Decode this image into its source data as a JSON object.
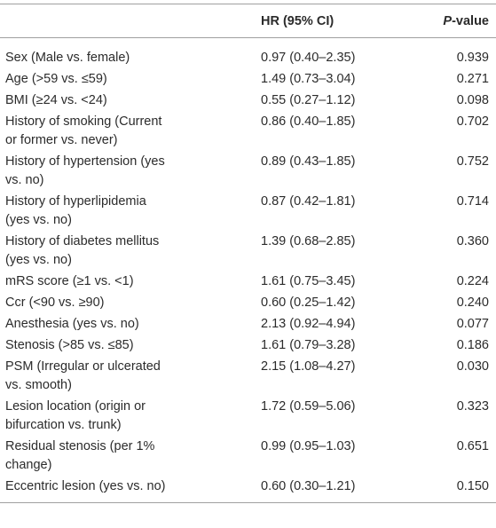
{
  "table": {
    "header": {
      "hr": "HR (95% CI)",
      "p_italic": "P",
      "p_rest": "-value"
    },
    "rows": [
      {
        "label": [
          "Sex (Male vs. female)"
        ],
        "hr": "0.97 (0.40–2.35)",
        "p": "0.939"
      },
      {
        "label": [
          "Age (>59 vs. ≤59)"
        ],
        "hr": "1.49 (0.73–3.04)",
        "p": "0.271"
      },
      {
        "label": [
          "BMI (≥24 vs. <24)"
        ],
        "hr": "0.55 (0.27–1.12)",
        "p": "0.098"
      },
      {
        "label": [
          "History of smoking (Current",
          "or former vs. never)"
        ],
        "hr": "0.86 (0.40–1.85)",
        "p": "0.702"
      },
      {
        "label": [
          "History of hypertension (yes",
          "vs. no)"
        ],
        "hr": "0.89 (0.43–1.85)",
        "p": "0.752"
      },
      {
        "label": [
          "History of hyperlipidemia",
          "(yes vs. no)"
        ],
        "hr": "0.87 (0.42–1.81)",
        "p": "0.714"
      },
      {
        "label": [
          "History of diabetes mellitus",
          "(yes vs. no)"
        ],
        "hr": "1.39 (0.68–2.85)",
        "p": "0.360"
      },
      {
        "label": [
          "mRS score (≥1 vs. <1)"
        ],
        "hr": "1.61 (0.75–3.45)",
        "p": "0.224"
      },
      {
        "label": [
          "Ccr (<90 vs. ≥90)"
        ],
        "hr": "0.60 (0.25–1.42)",
        "p": "0.240"
      },
      {
        "label": [
          "Anesthesia (yes vs. no)"
        ],
        "hr": "2.13 (0.92–4.94)",
        "p": "0.077"
      },
      {
        "label": [
          "Stenosis (>85 vs. ≤85)"
        ],
        "hr": "1.61 (0.79–3.28)",
        "p": "0.186"
      },
      {
        "label": [
          "PSM (Irregular or ulcerated",
          "vs. smooth)"
        ],
        "hr": "2.15 (1.08–4.27)",
        "p": "0.030"
      },
      {
        "label": [
          "Lesion location (origin or",
          "bifurcation vs. trunk)"
        ],
        "hr": "1.72 (0.59–5.06)",
        "p": "0.323"
      },
      {
        "label": [
          "Residual stenosis (per 1%",
          "change)"
        ],
        "hr": "0.99 (0.95–1.03)",
        "p": "0.651"
      },
      {
        "label": [
          "Eccentric lesion (yes vs. no)"
        ],
        "hr": "0.60 (0.30–1.21)",
        "p": "0.150"
      }
    ]
  }
}
